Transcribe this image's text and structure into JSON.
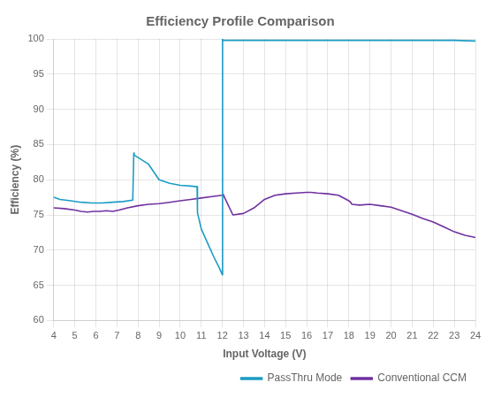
{
  "chart_data": {
    "type": "line",
    "title": "Efficiency Profile Comparison",
    "x_label": "Input Voltage (V)",
    "y_label": "Efficiency (%)",
    "xlim": [
      4,
      24
    ],
    "ylim": [
      60,
      100
    ],
    "xticks": [
      4,
      5,
      6,
      7,
      8,
      9,
      10,
      11,
      12,
      13,
      14,
      15,
      16,
      17,
      18,
      19,
      20,
      21,
      22,
      23,
      24
    ],
    "yticks": [
      60,
      65,
      70,
      75,
      80,
      85,
      90,
      95,
      100
    ],
    "grid": true,
    "legend": "lower right",
    "series": [
      {
        "name": "PassThru Mode",
        "color": "#1b9cc4",
        "x": [
          4.0,
          4.3,
          4.8,
          5.3,
          5.8,
          6.3,
          6.8,
          7.3,
          7.75,
          7.8,
          7.82,
          8.5,
          9.0,
          9.5,
          10.0,
          10.5,
          10.8,
          10.82,
          11.0,
          11.3,
          11.6,
          11.85,
          12.0,
          12.01,
          12.02,
          12.5,
          13.0,
          14.0,
          15.0,
          16.0,
          17.0,
          18.0,
          19.0,
          20.0,
          21.0,
          22.0,
          23.0,
          24.0
        ],
        "values": [
          77.5,
          77.2,
          77.0,
          76.8,
          76.7,
          76.7,
          76.8,
          76.9,
          77.1,
          83.8,
          83.5,
          82.2,
          80.0,
          79.5,
          79.2,
          79.1,
          79.0,
          75.3,
          73.0,
          71.0,
          69.0,
          67.5,
          66.5,
          100.0,
          99.8,
          99.8,
          99.8,
          99.8,
          99.8,
          99.8,
          99.8,
          99.8,
          99.8,
          99.8,
          99.8,
          99.8,
          99.8,
          99.7
        ]
      },
      {
        "name": "Conventional CCM",
        "color": "#7030a0",
        "x": [
          4.0,
          4.5,
          5.0,
          5.3,
          5.6,
          5.9,
          6.2,
          6.5,
          6.8,
          7.1,
          7.5,
          8.0,
          8.5,
          9.0,
          9.5,
          10.0,
          10.5,
          11.0,
          11.5,
          12.0,
          12.05,
          12.1,
          12.5,
          13.0,
          13.5,
          14.0,
          14.5,
          15.0,
          15.5,
          16.0,
          16.2,
          16.5,
          17.0,
          17.5,
          18.0,
          18.08,
          18.15,
          18.5,
          19.0,
          19.5,
          20.0,
          20.5,
          21.0,
          21.5,
          22.0,
          22.5,
          23.0,
          23.5,
          24.0
        ],
        "values": [
          76.0,
          75.9,
          75.7,
          75.5,
          75.4,
          75.5,
          75.5,
          75.6,
          75.5,
          75.7,
          76.0,
          76.3,
          76.5,
          76.6,
          76.8,
          77.0,
          77.2,
          77.4,
          77.6,
          77.8,
          77.9,
          77.5,
          75.0,
          75.2,
          76.0,
          77.2,
          77.8,
          78.0,
          78.1,
          78.2,
          78.2,
          78.1,
          78.0,
          77.8,
          77.0,
          76.8,
          76.5,
          76.4,
          76.5,
          76.3,
          76.1,
          75.6,
          75.1,
          74.5,
          74.0,
          73.3,
          72.6,
          72.1,
          71.8
        ]
      }
    ]
  }
}
